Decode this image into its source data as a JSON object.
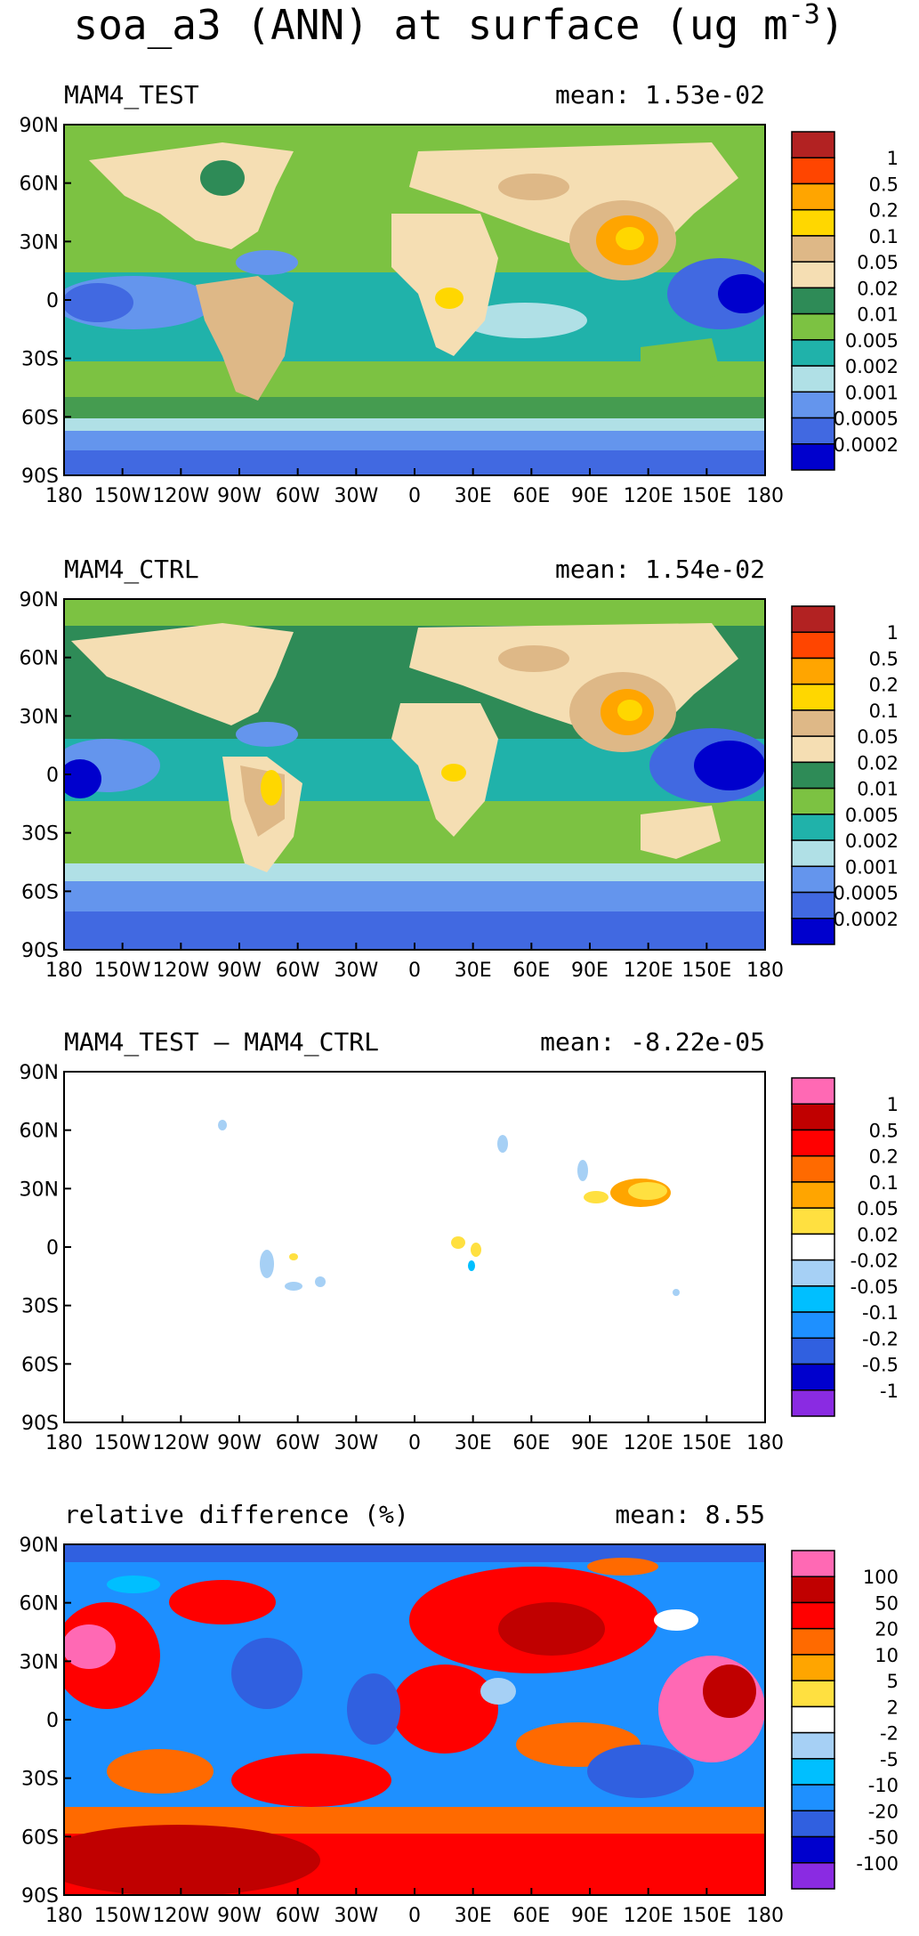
{
  "figure": {
    "title": "soa_a3 (ANN) at surface (ug m",
    "title_exponent": "-3",
    "title_close": ")"
  },
  "axes": {
    "lon_ticks": [
      "180",
      "150W",
      "120W",
      "90W",
      "60W",
      "30W",
      "0",
      "30E",
      "60E",
      "90E",
      "120E",
      "150E",
      "180"
    ],
    "lat_ticks": [
      "90N",
      "60N",
      "30N",
      "0",
      "30S",
      "60S",
      "90S"
    ]
  },
  "panels": [
    {
      "label": "MAM4_TEST",
      "mean_text": "mean: 1.53e-02",
      "kind": "absolute",
      "levels": [
        "1",
        "0.5",
        "0.2",
        "0.1",
        "0.05",
        "0.02",
        "0.01",
        "0.005",
        "0.002",
        "0.001",
        "0.0005",
        "0.0002"
      ],
      "colors": [
        "#b22222",
        "#ff4500",
        "#ffa500",
        "#ffd700",
        "#deb887",
        "#f5deb3",
        "#2e8b57",
        "#7cc242",
        "#20b2aa",
        "#b0e0e6",
        "#6495ed",
        "#4169e1",
        "#0000cd"
      ]
    },
    {
      "label": "MAM4_CTRL",
      "mean_text": "mean: 1.54e-02",
      "kind": "absolute",
      "levels": [
        "1",
        "0.5",
        "0.2",
        "0.1",
        "0.05",
        "0.02",
        "0.01",
        "0.005",
        "0.002",
        "0.001",
        "0.0005",
        "0.0002"
      ],
      "colors": [
        "#b22222",
        "#ff4500",
        "#ffa500",
        "#ffd700",
        "#deb887",
        "#f5deb3",
        "#2e8b57",
        "#7cc242",
        "#20b2aa",
        "#b0e0e6",
        "#6495ed",
        "#4169e1",
        "#0000cd"
      ]
    },
    {
      "label": "MAM4_TEST – MAM4_CTRL",
      "mean_text": "mean: -8.22e-05",
      "kind": "difference",
      "levels": [
        "1",
        "0.5",
        "0.2",
        "0.1",
        "0.05",
        "0.02",
        "-0.02",
        "-0.05",
        "-0.1",
        "-0.2",
        "-0.5",
        "-1"
      ],
      "colors": [
        "#ff69b4",
        "#c00000",
        "#ff0000",
        "#ff6a00",
        "#ffa500",
        "#ffe040",
        "#ffffff",
        "#a6d0f5",
        "#00bfff",
        "#1e90ff",
        "#3060e0",
        "#0000cd",
        "#8a2be2"
      ]
    },
    {
      "label": "relative difference (%)",
      "mean_text": "mean:  8.55",
      "kind": "relative",
      "levels": [
        "100",
        "50",
        "20",
        "10",
        "5",
        "2",
        "-2",
        "-5",
        "-10",
        "-20",
        "-50",
        "-100"
      ],
      "colors": [
        "#ff69b4",
        "#c00000",
        "#ff0000",
        "#ff6a00",
        "#ffa500",
        "#ffe040",
        "#ffffff",
        "#a6d0f5",
        "#00bfff",
        "#1e90ff",
        "#3060e0",
        "#0000cd",
        "#8a2be2"
      ]
    }
  ]
}
